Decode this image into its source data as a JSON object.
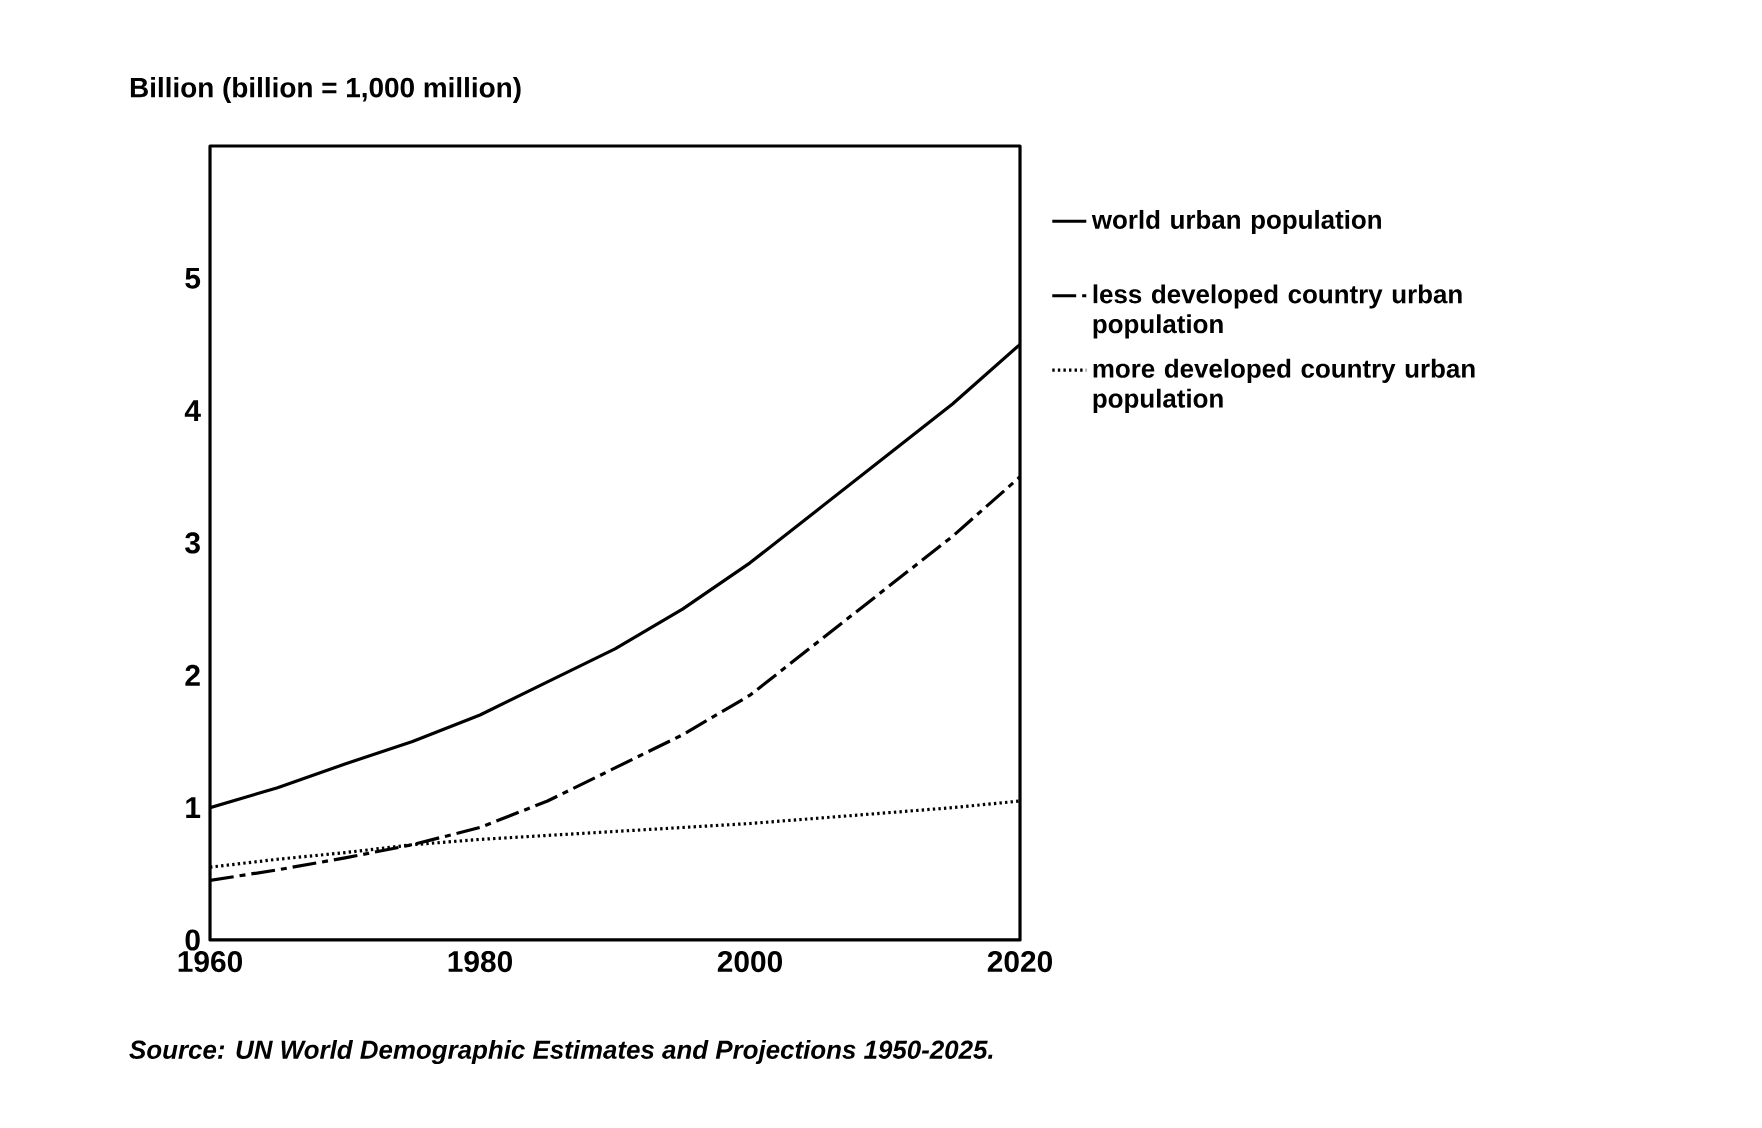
{
  "chart_data": {
    "type": "line",
    "ylabel": "Billion (billion = 1,000 million)",
    "x": [
      1960,
      1965,
      1970,
      1975,
      1980,
      1985,
      1990,
      1995,
      2000,
      2005,
      2010,
      2015,
      2020
    ],
    "series": [
      {
        "name": "world urban population",
        "color": "#000000",
        "line_style": "solid",
        "values": [
          1.0,
          1.15,
          1.33,
          1.5,
          1.7,
          1.95,
          2.2,
          2.5,
          2.85,
          3.25,
          3.65,
          4.05,
          4.5
        ]
      },
      {
        "name": "less developed country urban population",
        "color": "#000000",
        "line_style": "dashed",
        "values": [
          0.45,
          0.53,
          0.62,
          0.72,
          0.85,
          1.05,
          1.3,
          1.55,
          1.85,
          2.25,
          2.65,
          3.05,
          3.5
        ]
      },
      {
        "name": "more developed country urban population",
        "color": "#000000",
        "line_style": "dotted",
        "values": [
          0.55,
          0.61,
          0.66,
          0.72,
          0.76,
          0.79,
          0.82,
          0.85,
          0.88,
          0.92,
          0.96,
          1.0,
          1.05
        ]
      }
    ],
    "xlim": [
      1960,
      2020
    ],
    "ylim": [
      0,
      6
    ],
    "xticks": [
      1960,
      1980,
      2000,
      2020
    ],
    "yticks": [
      0,
      1,
      2,
      3,
      4,
      5
    ],
    "legend": "right",
    "annotations": [
      "*Source: UN World Demographic Estimates and Projections 1950-2025.*"
    ]
  }
}
